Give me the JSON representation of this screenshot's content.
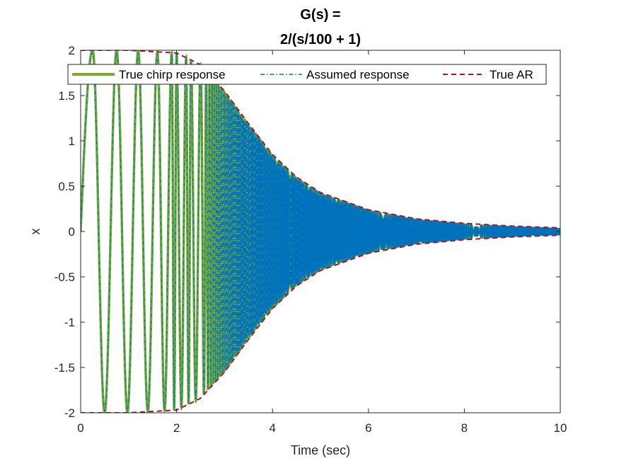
{
  "chart_data": {
    "type": "line",
    "title_lines": [
      "G(s) =",
      "2/(s/100 + 1)"
    ],
    "xlabel": "Time (sec)",
    "ylabel": "x",
    "xlim": [
      0,
      10
    ],
    "ylim": [
      -2,
      2
    ],
    "xticks": [
      0,
      2,
      4,
      6,
      8,
      10
    ],
    "xtick_labels": [
      "0",
      "2",
      "4",
      "6",
      "8",
      "10"
    ],
    "yticks": [
      -2,
      -1.5,
      -1,
      -0.5,
      0,
      0.5,
      1,
      1.5,
      2
    ],
    "ytick_labels": [
      "-2",
      "-1.5",
      "-1",
      "-0.5",
      "0",
      "0.5",
      "1",
      "1.5",
      "2"
    ],
    "grid": false,
    "legend_location": "top",
    "series": [
      {
        "name": "True chirp response",
        "style": "solid",
        "color": "#77AC30"
      },
      {
        "name": "Assumed response",
        "style": "dash-dot",
        "color": "#0072BD"
      },
      {
        "name": "True AR",
        "style": "dashed",
        "color": "#A2142F"
      }
    ],
    "amplitude_envelope": {
      "t": [
        0,
        1,
        2,
        2.5,
        3,
        3.5,
        4,
        4.5,
        5,
        6,
        7,
        8,
        9,
        10
      ],
      "amplitude": [
        2.0,
        2.0,
        1.97,
        1.84,
        1.55,
        1.19,
        0.85,
        0.6,
        0.43,
        0.24,
        0.14,
        0.09,
        0.06,
        0.04
      ]
    },
    "chirp_peaks_t": [
      0.25,
      0.75,
      1.2,
      1.6,
      1.9,
      2.0,
      2.2,
      2.3,
      2.5
    ]
  }
}
